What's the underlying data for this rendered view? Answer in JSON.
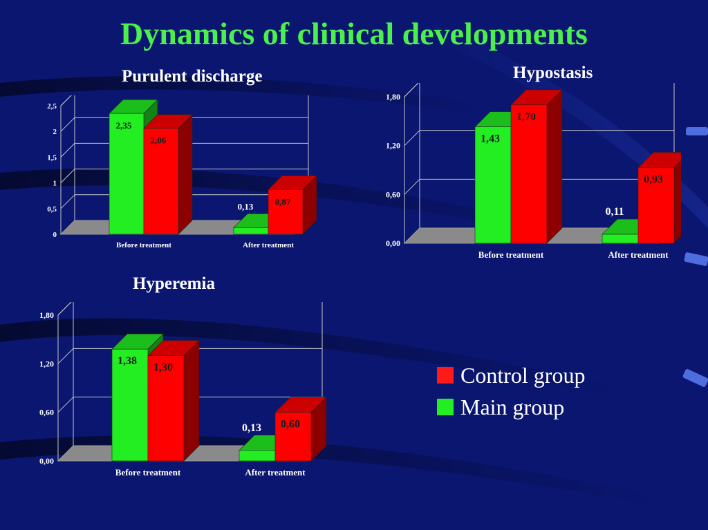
{
  "title": "Dynamics of clinical developments",
  "colors": {
    "background": "#0a1670",
    "title": "#4cf04c",
    "main": "#22ee22",
    "control": "#ff0000"
  },
  "legend": {
    "items": [
      {
        "label": "Control group",
        "color": "#ff1a1a"
      },
      {
        "label": "Main group",
        "color": "#22ee22"
      }
    ]
  },
  "chart_data": [
    {
      "type": "bar",
      "title": "Purulent discharge",
      "categories": [
        "Before treatment",
        "After treatment"
      ],
      "series": [
        {
          "name": "Main group",
          "values": [
            2.35,
            0.13
          ],
          "labels": [
            "2,35",
            "0,13"
          ]
        },
        {
          "name": "Control group",
          "values": [
            2.06,
            0.87
          ],
          "labels": [
            "2,06",
            "0,87"
          ]
        }
      ],
      "yticks": [
        "0",
        "0,5",
        "1",
        "1,5",
        "2",
        "2,5"
      ],
      "ylim": [
        0,
        2.5
      ]
    },
    {
      "type": "bar",
      "title": "Hypostasis",
      "categories": [
        "Before treatment",
        "After treatment"
      ],
      "series": [
        {
          "name": "Main group",
          "values": [
            1.43,
            0.11
          ],
          "labels": [
            "1,43",
            "0,11"
          ]
        },
        {
          "name": "Control group",
          "values": [
            1.7,
            0.93
          ],
          "labels": [
            "1,70",
            "0,93"
          ]
        }
      ],
      "yticks": [
        "0,00",
        "0,60",
        "1,20",
        "1,80"
      ],
      "ylim": [
        0,
        1.8
      ]
    },
    {
      "type": "bar",
      "title": "Hyperemia",
      "categories": [
        "Before treatment",
        "After treatment"
      ],
      "series": [
        {
          "name": "Main group",
          "values": [
            1.38,
            0.13
          ],
          "labels": [
            "1,38",
            "0,13"
          ]
        },
        {
          "name": "Control group",
          "values": [
            1.3,
            0.6
          ],
          "labels": [
            "1,30",
            "0,60"
          ]
        }
      ],
      "yticks": [
        "0,00",
        "0,60",
        "1,20",
        "1,80"
      ],
      "ylim": [
        0,
        1.8
      ]
    }
  ]
}
